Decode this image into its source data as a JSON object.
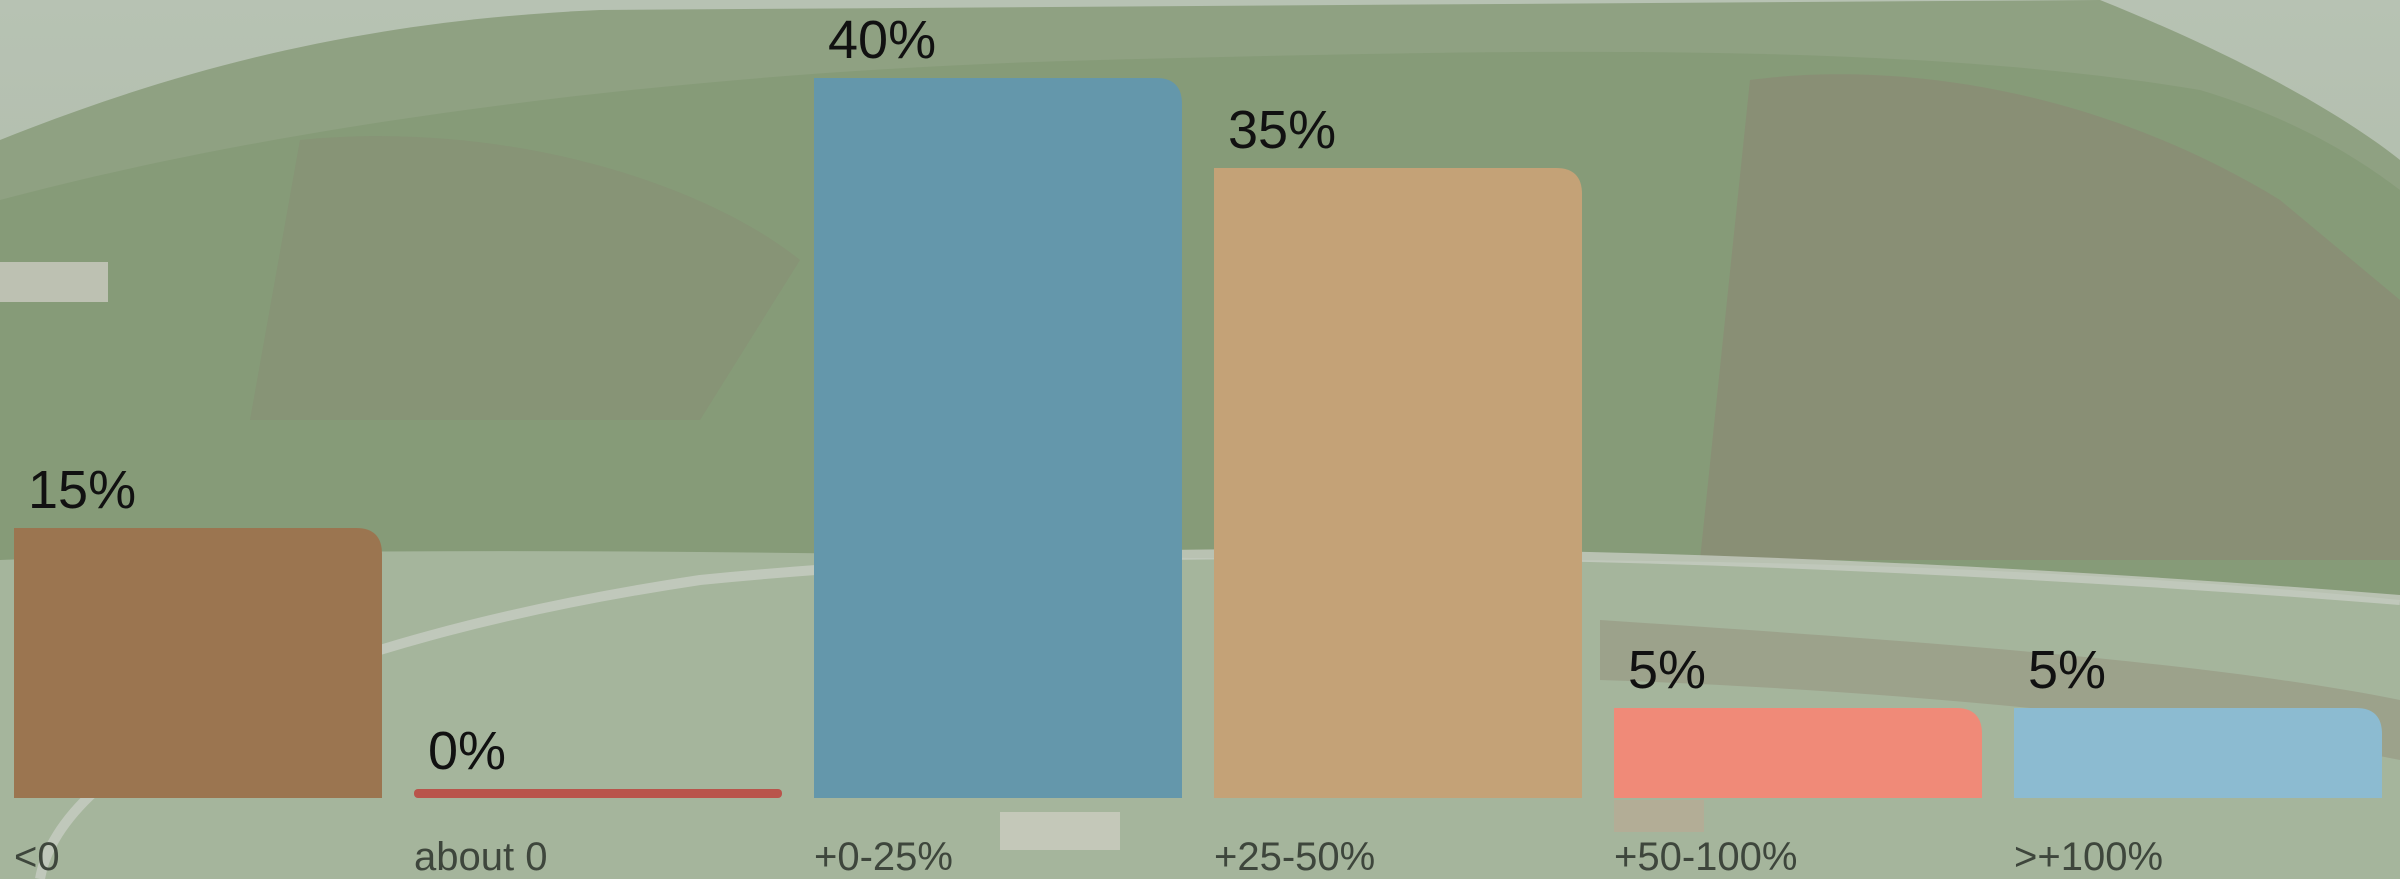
{
  "chart_data": {
    "type": "bar",
    "title": "",
    "xlabel": "",
    "ylabel": "",
    "categories": [
      "<0",
      "about 0",
      "+0-25%",
      "+25-50%",
      "+50-100%",
      ">+100%"
    ],
    "values": [
      15,
      0,
      40,
      35,
      5,
      5
    ],
    "value_labels": [
      "15%",
      "0%",
      "40%",
      "35%",
      "5%",
      "5%"
    ],
    "colors": [
      "#9b7550",
      "#b9544b",
      "#6497ab",
      "#c4a277",
      "#f08a78",
      "#8cbbd1"
    ],
    "ylim": [
      0,
      40
    ],
    "grid": false,
    "legend": "none"
  }
}
